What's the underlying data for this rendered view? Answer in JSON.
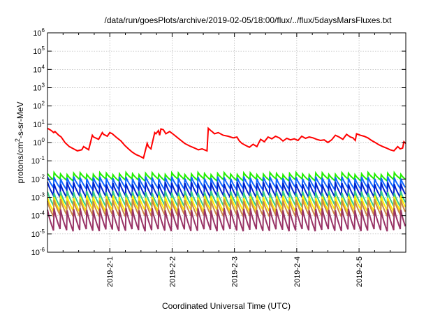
{
  "chart_data": {
    "type": "line",
    "title": "/data/run/goesPlots/archive/2019-02-05/18:00/flux/../flux/5daysMarsFluxes.txt",
    "xlabel": "Coordinated Universal Time (UTC)",
    "ylabel": {
      "base": "protons/cm",
      "sup": "2",
      "rest": "-s-sr-MeV"
    },
    "yscale": "log",
    "ylim": [
      1e-06,
      1000000.0
    ],
    "yticks": [
      {
        "mant": "10",
        "exp": "-6"
      },
      {
        "mant": "10",
        "exp": "-5"
      },
      {
        "mant": "10",
        "exp": "-4"
      },
      {
        "mant": "10",
        "exp": "-3"
      },
      {
        "mant": "10",
        "exp": "-2"
      },
      {
        "mant": "10",
        "exp": "-1"
      },
      {
        "mant": "10",
        "exp": "0"
      },
      {
        "mant": "10",
        "exp": "1"
      },
      {
        "mant": "10",
        "exp": "2"
      },
      {
        "mant": "10",
        "exp": "3"
      },
      {
        "mant": "10",
        "exp": "4"
      },
      {
        "mant": "10",
        "exp": "5"
      },
      {
        "mant": "10",
        "exp": "6"
      }
    ],
    "xlim": [
      "2019-01-31 00:00",
      "2019-02-05 18:00"
    ],
    "xticks": [
      "2019-2-1",
      "2019-2-2",
      "2019-2-3",
      "2019-2-4",
      "2019-2-5"
    ],
    "grid": true,
    "series": [
      {
        "color": "#ff0000",
        "width": 2,
        "x": [
          0,
          0.04,
          0.06,
          0.1,
          0.12,
          0.18,
          0.22,
          0.28,
          0.35,
          0.42,
          0.48,
          0.55,
          0.58,
          0.66,
          0.72,
          0.74,
          0.82,
          0.88,
          0.9,
          0.96,
          1.0,
          1.04,
          1.1,
          1.18,
          1.24,
          1.3,
          1.36,
          1.42,
          1.48,
          1.54,
          1.6,
          1.62,
          1.66,
          1.72,
          1.74,
          1.78,
          1.8,
          1.82,
          1.86,
          1.9,
          1.96,
          2.04,
          2.12,
          2.2,
          2.28,
          2.36,
          2.42,
          2.48,
          2.56,
          2.58,
          2.62,
          2.64,
          2.68,
          2.74,
          2.82,
          2.9,
          2.98,
          3.04,
          3.08,
          3.12,
          3.18,
          3.24,
          3.3,
          3.36,
          3.42,
          3.48,
          3.54,
          3.6,
          3.66,
          3.72,
          3.78,
          3.84,
          3.9,
          3.96,
          4.02,
          4.08,
          4.14,
          4.2,
          4.26,
          4.32,
          4.38,
          4.44,
          4.5,
          4.56,
          4.62,
          4.68,
          4.74,
          4.8,
          4.86,
          4.9,
          4.94,
          4.96,
          5.02,
          5.08,
          5.14,
          5.2,
          5.26,
          5.32,
          5.38,
          5.44,
          5.5,
          5.56,
          5.62,
          5.66,
          5.7,
          5.72,
          5.75
        ],
        "y": [
          6.0,
          5.0,
          4.5,
          3.5,
          4.0,
          2.5,
          2.0,
          1.0,
          0.6,
          0.45,
          0.35,
          0.4,
          0.6,
          0.4,
          2.5,
          2.0,
          1.5,
          3.5,
          2.8,
          2.2,
          3.5,
          3.0,
          2.0,
          1.2,
          0.7,
          0.45,
          0.3,
          0.22,
          0.18,
          0.14,
          0.9,
          0.6,
          0.45,
          3.5,
          3.0,
          4.5,
          2.5,
          5.5,
          5.0,
          3.0,
          4.0,
          2.5,
          1.5,
          0.9,
          0.65,
          0.5,
          0.4,
          0.45,
          0.35,
          6.0,
          4.5,
          4.0,
          3.0,
          3.5,
          2.5,
          2.2,
          1.8,
          2.0,
          1.2,
          0.9,
          0.7,
          0.55,
          0.8,
          0.6,
          1.5,
          1.1,
          2.0,
          1.6,
          2.2,
          1.8,
          1.2,
          1.7,
          1.4,
          1.6,
          1.3,
          2.2,
          1.7,
          2.0,
          1.8,
          1.5,
          1.3,
          1.4,
          1.0,
          1.4,
          2.5,
          2.0,
          1.5,
          2.8,
          2.0,
          1.8,
          1.3,
          3.0,
          2.5,
          2.2,
          1.8,
          1.3,
          1.0,
          0.75,
          0.6,
          0.5,
          0.4,
          0.35,
          0.6,
          0.45,
          0.5,
          1.1,
          0.9
        ]
      },
      {
        "color": "#22ee00",
        "width": 2,
        "x": [],
        "y": []
      },
      {
        "color": "#1166ff",
        "width": 2,
        "x": [],
        "y": []
      },
      {
        "color": "#0022cc",
        "width": 2,
        "x": [],
        "y": []
      },
      {
        "color": "#33cc88",
        "width": 2,
        "x": [],
        "y": []
      },
      {
        "color": "#ffee00",
        "width": 2,
        "x": [],
        "y": []
      },
      {
        "color": "#cc8844",
        "width": 2,
        "x": [],
        "y": []
      },
      {
        "color": "#993366",
        "width": 2,
        "x": [],
        "y": []
      }
    ],
    "sawtooth": {
      "description_free_params": true,
      "period_days": 0.105,
      "series": [
        {
          "peak": 0.02,
          "trough": 0.009
        },
        {
          "peak": 0.012,
          "trough": 0.003
        },
        {
          "peak": 0.006,
          "trough": 0.0011
        },
        {
          "peak": 0.002,
          "trough": 0.00035
        },
        {
          "peak": 0.0011,
          "trough": 0.00018
        },
        {
          "peak": 0.0007,
          "trough": 0.0001
        },
        {
          "peak": 0.00022,
          "trough": 1.6e-05
        }
      ]
    }
  }
}
